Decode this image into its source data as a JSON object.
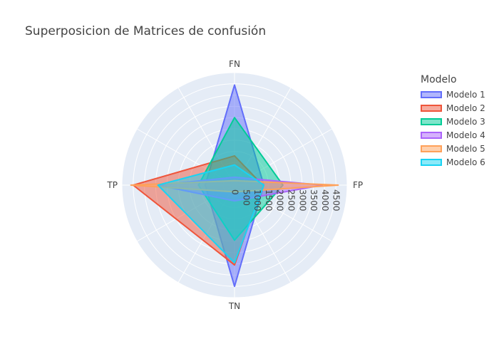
{
  "chart_data": {
    "type": "radar",
    "title": "Superposicion de Matrices de confusión",
    "legend_title": "Modelo",
    "legend_placement": "right",
    "axes": [
      "FP",
      "FN",
      "TP",
      "TN"
    ],
    "radial_range": [
      0,
      5000
    ],
    "radial_ticks": [
      0,
      500,
      1000,
      1500,
      2000,
      2500,
      3000,
      3500,
      4000,
      4500
    ],
    "grid": true,
    "series": [
      {
        "name": "Modelo 1",
        "color": "#636efa",
        "values": {
          "FP": 1300,
          "FN": 4450,
          "TP": 1300,
          "TN": 4500
        }
      },
      {
        "name": "Modelo 2",
        "color": "#ef553b",
        "values": {
          "FP": 1250,
          "FN": 1300,
          "TP": 4500,
          "TN": 3550
        }
      },
      {
        "name": "Modelo 3",
        "color": "#00cc96",
        "values": {
          "FP": 2150,
          "FN": 3000,
          "TP": 1600,
          "TN": 2450
        }
      },
      {
        "name": "Modelo 4",
        "color": "#ab63fa",
        "values": {
          "FP": 3900,
          "FN": 350,
          "TP": 3400,
          "TN": 700
        }
      },
      {
        "name": "Modelo 5",
        "color": "#ffa15a",
        "values": {
          "FP": 4600,
          "FN": 200,
          "TP": 4600,
          "TN": 300
        }
      },
      {
        "name": "Modelo 6",
        "color": "#19d3f3",
        "values": {
          "FP": 1300,
          "FN": 900,
          "TP": 3400,
          "TN": 3450
        }
      }
    ]
  }
}
